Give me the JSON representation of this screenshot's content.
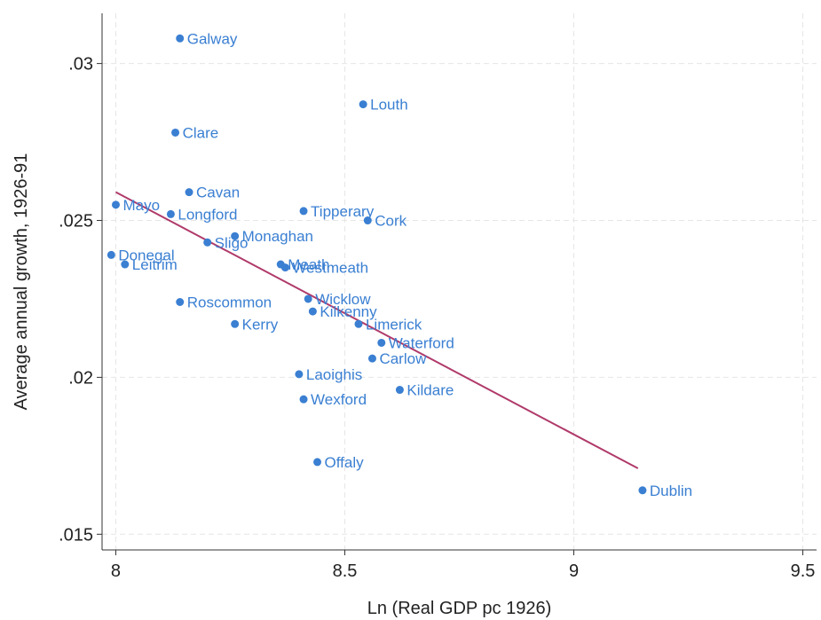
{
  "chart_data": {
    "type": "scatter",
    "xlabel": "Ln (Real GDP pc 1926)",
    "ylabel": "Average annual growth, 1926-91",
    "xlim": [
      7.97,
      9.53
    ],
    "ylim": [
      0.0145,
      0.0316
    ],
    "x_ticks": [
      8,
      8.5,
      9,
      9.5
    ],
    "x_tick_labels": [
      "8",
      "8.5",
      "9",
      "9.5"
    ],
    "y_ticks": [
      0.015,
      0.02,
      0.025,
      0.03
    ],
    "y_tick_labels": [
      ".015",
      ".02",
      ".025",
      ".03"
    ],
    "grid": true,
    "legend": "none",
    "point_color": "#3a7fd2",
    "label_color": "#3a7fd2",
    "fit_line_color": "#b03a6a",
    "points": [
      {
        "label": "Galway",
        "x": 8.14,
        "y": 0.0308
      },
      {
        "label": "Louth",
        "x": 8.54,
        "y": 0.0287
      },
      {
        "label": "Clare",
        "x": 8.13,
        "y": 0.0278
      },
      {
        "label": "Cavan",
        "x": 8.16,
        "y": 0.0259
      },
      {
        "label": "Mayo",
        "x": 8.0,
        "y": 0.0255
      },
      {
        "label": "Longford",
        "x": 8.12,
        "y": 0.0252
      },
      {
        "label": "Tipperary",
        "x": 8.41,
        "y": 0.0253
      },
      {
        "label": "Cork",
        "x": 8.55,
        "y": 0.025
      },
      {
        "label": "Monaghan",
        "x": 8.26,
        "y": 0.0245
      },
      {
        "label": "Sligo",
        "x": 8.2,
        "y": 0.0243
      },
      {
        "label": "Donegal",
        "x": 7.99,
        "y": 0.0239
      },
      {
        "label": "Leitrim",
        "x": 8.02,
        "y": 0.0236
      },
      {
        "label": "Meath",
        "x": 8.36,
        "y": 0.0236
      },
      {
        "label": "Westmeath",
        "x": 8.37,
        "y": 0.0235
      },
      {
        "label": "Roscommon",
        "x": 8.14,
        "y": 0.0224
      },
      {
        "label": "Wicklow",
        "x": 8.42,
        "y": 0.0225
      },
      {
        "label": "Kilkenny",
        "x": 8.43,
        "y": 0.0221
      },
      {
        "label": "Kerry",
        "x": 8.26,
        "y": 0.0217
      },
      {
        "label": "Limerick",
        "x": 8.53,
        "y": 0.0217
      },
      {
        "label": "Waterford",
        "x": 8.58,
        "y": 0.0211
      },
      {
        "label": "Carlow",
        "x": 8.56,
        "y": 0.0206
      },
      {
        "label": "Laoighis",
        "x": 8.4,
        "y": 0.0201
      },
      {
        "label": "Kildare",
        "x": 8.62,
        "y": 0.0196
      },
      {
        "label": "Wexford",
        "x": 8.41,
        "y": 0.0193
      },
      {
        "label": "Offaly",
        "x": 8.44,
        "y": 0.0173
      },
      {
        "label": "Dublin",
        "x": 9.15,
        "y": 0.0164
      }
    ],
    "fit_line": {
      "x": [
        8.0,
        9.14
      ],
      "y": [
        0.0259,
        0.0171
      ]
    }
  }
}
